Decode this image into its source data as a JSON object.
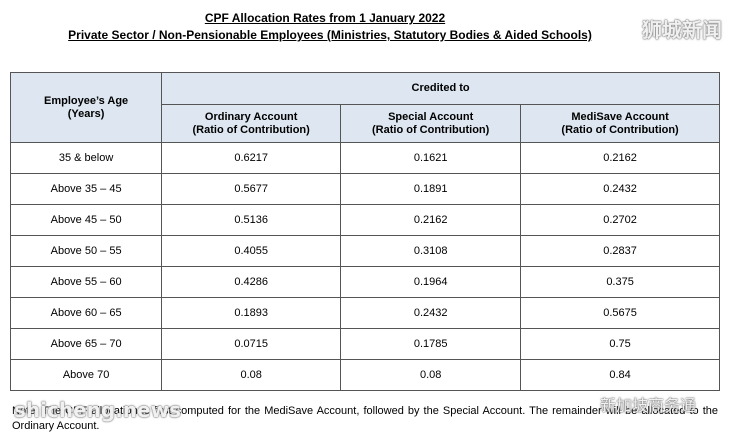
{
  "header": {
    "title": "CPF Allocation Rates from 1 January 2022",
    "subtitle": "Private Sector / Non-Pensionable Employees (Ministries, Statutory Bodies & Aided Schools)"
  },
  "table": {
    "age_header": [
      "Employee’s Age",
      "(Years)"
    ],
    "group_header": "Credited to",
    "columns": [
      [
        "Ordinary Account",
        "(Ratio of Contribution)"
      ],
      [
        "Special Account",
        "(Ratio of Contribution)"
      ],
      [
        "MediSave Account",
        "(Ratio of Contribution)"
      ]
    ],
    "rows": [
      [
        "35 & below",
        "0.6217",
        "0.1621",
        "0.2162"
      ],
      [
        "Above 35 – 45",
        "0.5677",
        "0.1891",
        "0.2432"
      ],
      [
        "Above 45 – 50",
        "0.5136",
        "0.2162",
        "0.2702"
      ],
      [
        "Above 50 – 55",
        "0.4055",
        "0.3108",
        "0.2837"
      ],
      [
        "Above 55 – 60",
        "0.4286",
        "0.1964",
        "0.375"
      ],
      [
        "Above 60 – 65",
        "0.1893",
        "0.2432",
        "0.5675"
      ],
      [
        "Above 65 – 70",
        "0.0715",
        "0.1785",
        "0.75"
      ],
      [
        "Above 70",
        "0.08",
        "0.08",
        "0.84"
      ]
    ]
  },
  "note": "Note: The CPF allocation is first computed for the MediSave Account, followed by the Special Account. The remainder will be allocated to the Ordinary Account.",
  "watermarks": [
    "狮城新闻",
    "shicheng.news",
    "新加坡商务通"
  ]
}
